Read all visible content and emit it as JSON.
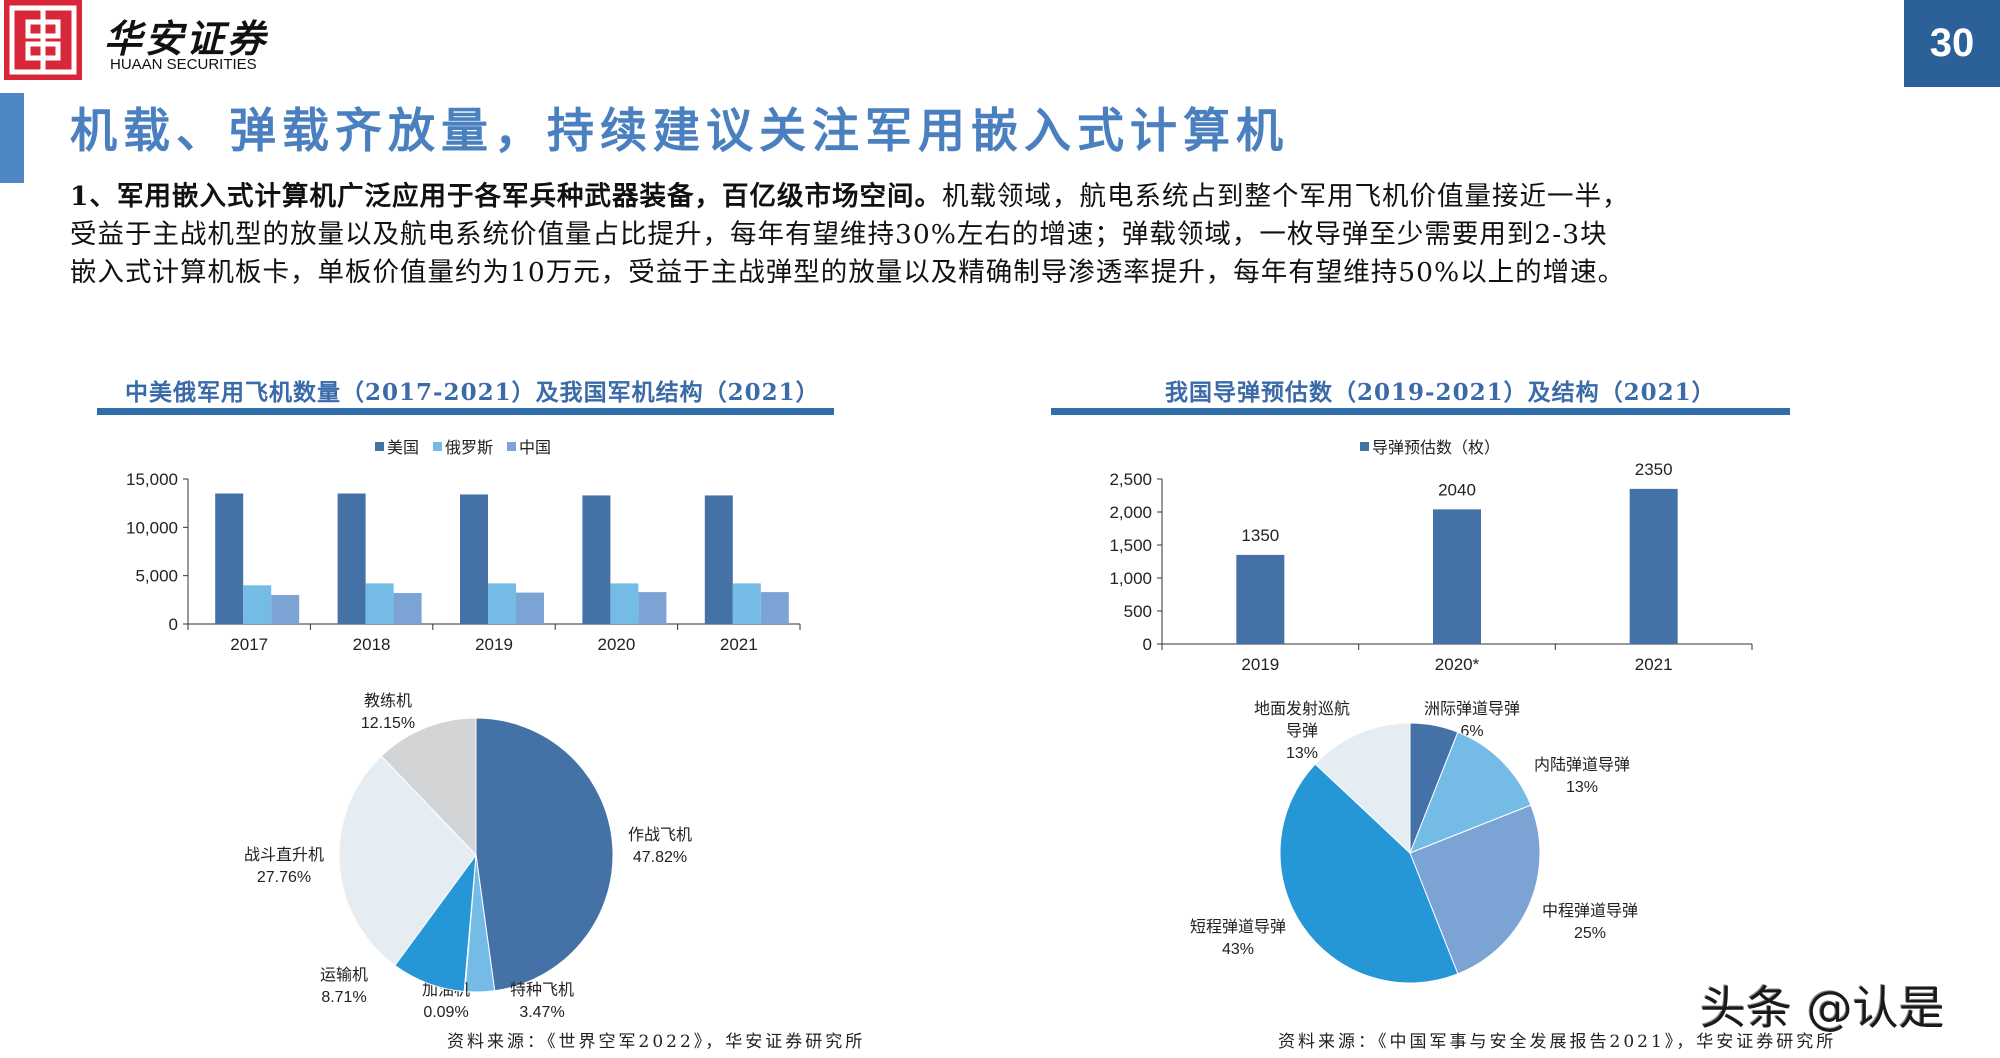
{
  "header": {
    "logo_cn": "华安证券",
    "logo_en": "HUAAN SECURITIES",
    "page_number": "30"
  },
  "title": "机载、弹载齐放量，持续建议关注军用嵌入式计算机",
  "paragraph": {
    "bold_lead": "1、军用嵌入式计算机广泛应用于各军兵种武器装备，百亿级市场空间。",
    "line1_rest": "机载领域，航电系统占到整个军用飞机价值量接近一半，",
    "line2": "受益于主战机型的放量以及航电系统价值量占比提升，每年有望维持30%左右的增速；弹载领域，一枚导弹至少需要用到2-3块",
    "line3": "嵌入式计算机板卡，单板价值量约为10万元，受益于主战弹型的放量以及精确制导渗透率提升，每年有望维持50%以上的增速。"
  },
  "left_panel": {
    "title": "中美俄军用飞机数量（2017-2021）及我国军机结构（2021）",
    "source": "资料来源：《世界空军2022》，华安证券研究所"
  },
  "right_panel": {
    "title": "我国导弹预估数（2019-2021）及结构（2021）",
    "source": "资料来源：《中国军事与安全发展报告2021》，华安证券研究所"
  },
  "watermark": "头条 @认是",
  "colors": {
    "brand_red": "#d8273a",
    "title_blue": "#4a7fc0",
    "rule_blue": "#2f6ea8",
    "page_num_bg": "#2b6098",
    "us": "#4471a6",
    "russia": "#74bbe6",
    "china": "#7ba3d4"
  },
  "chart_data": [
    {
      "type": "bar",
      "title": "中美俄军用飞机数量（2017-2021）",
      "categories": [
        "2017",
        "2018",
        "2019",
        "2020",
        "2021"
      ],
      "series": [
        {
          "name": "美国",
          "color": "#4471a6",
          "values": [
            13500,
            13500,
            13400,
            13300,
            13300
          ]
        },
        {
          "name": "俄罗斯",
          "color": "#74bbe6",
          "values": [
            4000,
            4200,
            4200,
            4200,
            4200
          ]
        },
        {
          "name": "中国",
          "color": "#7ba3d4",
          "values": [
            3000,
            3200,
            3250,
            3300,
            3300
          ]
        }
      ],
      "xlabel": "",
      "ylabel": "",
      "yticks": [
        "0",
        "5,000",
        "10,000",
        "15,000"
      ],
      "ylim": [
        0,
        15000
      ],
      "legend_position": "top",
      "grid": false
    },
    {
      "type": "pie",
      "title": "我国军机结构（2021）",
      "slices": [
        {
          "label": "作战飞机",
          "value": 47.82,
          "text": "47.82%",
          "color": "#4471a6"
        },
        {
          "label": "特种飞机",
          "value": 3.47,
          "text": "3.47%",
          "color": "#74bbe6"
        },
        {
          "label": "加油机",
          "value": 0.09,
          "text": "0.09%",
          "color": "#9dc3e6"
        },
        {
          "label": "运输机",
          "value": 8.71,
          "text": "8.71%",
          "color": "#2596d6"
        },
        {
          "label": "战斗直升机",
          "value": 27.76,
          "text": "27.76%",
          "color": "#e6edf2"
        },
        {
          "label": "教练机",
          "value": 12.15,
          "text": "12.15%",
          "color": "#d2d4d6"
        }
      ]
    },
    {
      "type": "bar",
      "title": "我国导弹预估数（2019-2021）",
      "categories": [
        "2019",
        "2020*",
        "2021"
      ],
      "series": [
        {
          "name": "导弹预估数（枚）",
          "color": "#4471a6",
          "values": [
            1350,
            2040,
            2350
          ]
        }
      ],
      "data_labels": [
        "1350",
        "2040",
        "2350"
      ],
      "xlabel": "",
      "ylabel": "",
      "yticks": [
        "0",
        "500",
        "1,000",
        "1,500",
        "2,000",
        "2,500"
      ],
      "ylim": [
        0,
        2500
      ],
      "legend_position": "top",
      "grid": false
    },
    {
      "type": "pie",
      "title": "我国导弹结构（2021）",
      "slices": [
        {
          "label": "洲际弹道导弹",
          "value": 6,
          "text": "6%",
          "color": "#4471a6"
        },
        {
          "label": "内陆弹道导弹",
          "value": 13,
          "text": "13%",
          "color": "#74bbe6"
        },
        {
          "label": "中程弹道导弹",
          "value": 25,
          "text": "25%",
          "color": "#7ba3d4"
        },
        {
          "label": "短程弹道导弹",
          "value": 43,
          "text": "43%",
          "color": "#2596d6"
        },
        {
          "label": "地面发射巡航导弹",
          "value": 13,
          "text": "13%",
          "color": "#e6edf2"
        }
      ]
    }
  ]
}
